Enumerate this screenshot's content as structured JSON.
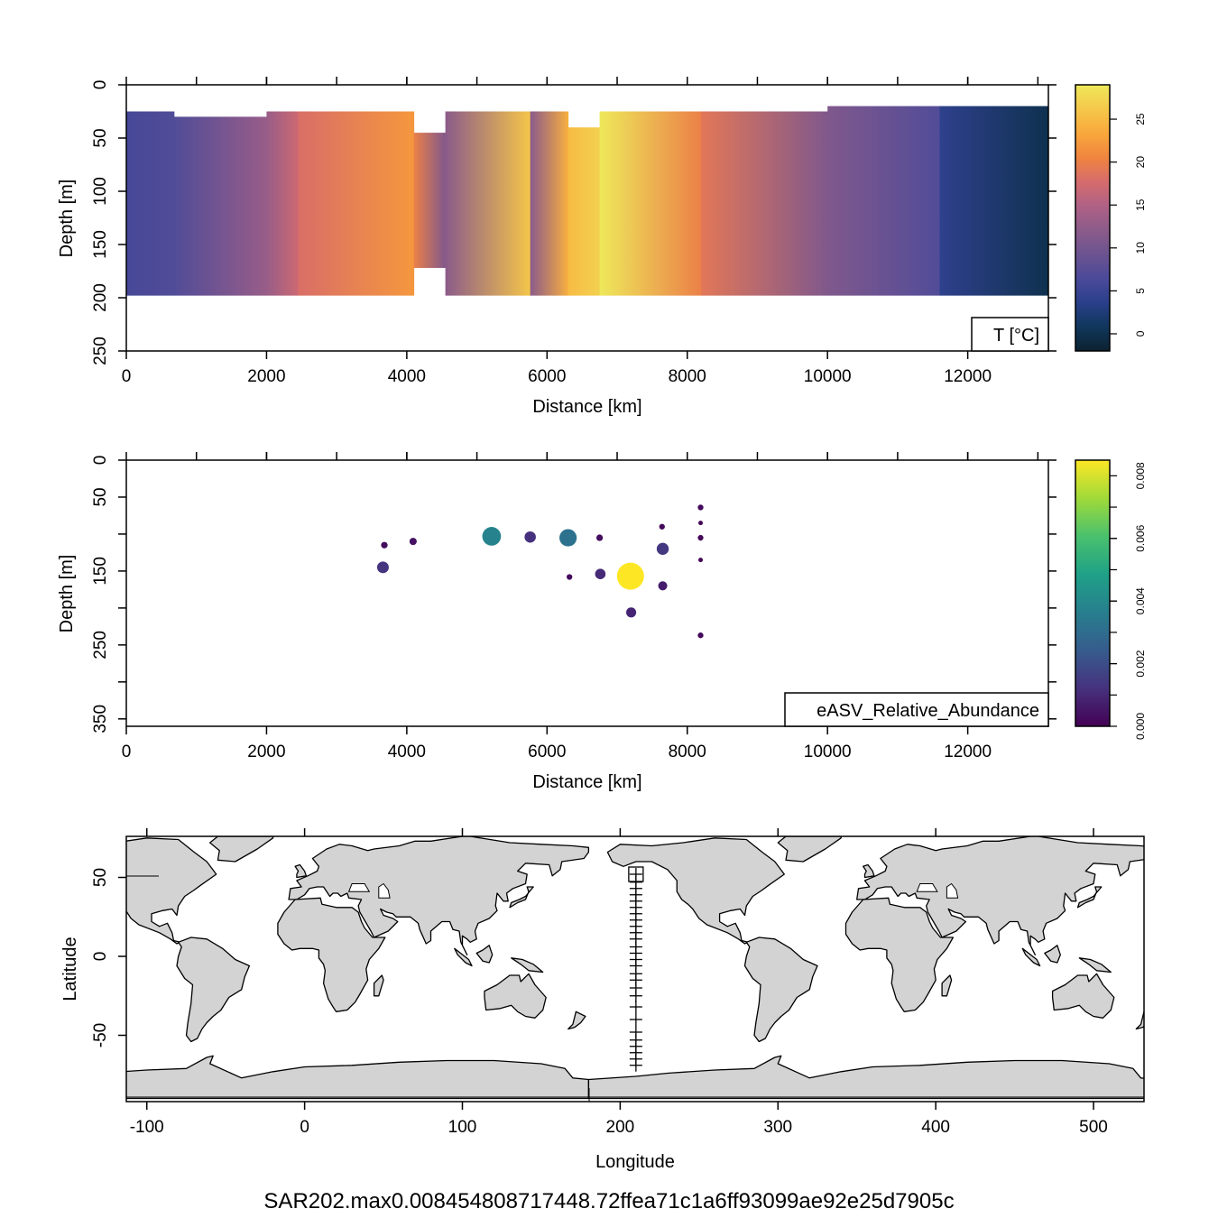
{
  "chart_data": [
    {
      "type": "heatmap",
      "xlabel": "Distance [km]",
      "ylabel": "Depth [m]",
      "xlim": [
        0,
        13150
      ],
      "ylim": [
        250,
        0
      ],
      "x_ticks": [
        "0",
        "2000",
        "4000",
        "6000",
        "8000",
        "10000",
        "12000"
      ],
      "y_ticks": [
        "0",
        "50",
        "100",
        "150",
        "200",
        "250"
      ],
      "legend_label": "T [°C]",
      "colorbar": {
        "range": [
          -2,
          29
        ],
        "ticks": [
          "0",
          "5",
          "10",
          "15",
          "20",
          "25"
        ],
        "palette": [
          "#0c2230",
          "#10375c",
          "#2a3f8a",
          "#4b4a9a",
          "#6c5390",
          "#8c5b8a",
          "#b06185",
          "#d66c6c",
          "#f0853f",
          "#f9a83c",
          "#f5c84a",
          "#eee85a"
        ]
      },
      "panels": [
        {
          "x0": 0,
          "x1": 680,
          "top": 25,
          "bottom": 198,
          "temps": [
            6,
            7
          ]
        },
        {
          "x0": 680,
          "x1": 2000,
          "top": 30,
          "bottom": 198,
          "temps": [
            7,
            13
          ]
        },
        {
          "x0": 2000,
          "x1": 2450,
          "top": 25,
          "bottom": 198,
          "temps": [
            13,
            17
          ]
        },
        {
          "x0": 2450,
          "x1": 4100,
          "top": 25,
          "bottom": 198,
          "temps": [
            18,
            22
          ]
        },
        {
          "x0": 4100,
          "x1": 4550,
          "top": 45,
          "bottom": 172,
          "temps": [
            20,
            11
          ]
        },
        {
          "x0": 4550,
          "x1": 5760,
          "top": 25,
          "bottom": 198,
          "temps": [
            12,
            26
          ]
        },
        {
          "x0": 5760,
          "x1": 6300,
          "top": 25,
          "bottom": 198,
          "temps": [
            12,
            24
          ]
        },
        {
          "x0": 6300,
          "x1": 6750,
          "top": 40,
          "bottom": 198,
          "temps": [
            25,
            27
          ]
        },
        {
          "x0": 6750,
          "x1": 8200,
          "top": 25,
          "bottom": 198,
          "temps": [
            29,
            20
          ]
        },
        {
          "x0": 8200,
          "x1": 10000,
          "top": 25,
          "bottom": 198,
          "temps": [
            19,
            11
          ]
        },
        {
          "x0": 10000,
          "x1": 11600,
          "top": 20,
          "bottom": 198,
          "temps": [
            11,
            7
          ]
        },
        {
          "x0": 11600,
          "x1": 13150,
          "top": 20,
          "bottom": 198,
          "temps": [
            4,
            0
          ]
        }
      ]
    },
    {
      "type": "scatter",
      "xlabel": "Distance [km]",
      "ylabel": "Depth [m]",
      "xlim": [
        0,
        13150
      ],
      "ylim": [
        360,
        0
      ],
      "x_ticks": [
        "0",
        "2000",
        "4000",
        "6000",
        "8000",
        "10000",
        "12000"
      ],
      "y_ticks": [
        "0",
        "50",
        "150",
        "250",
        "350"
      ],
      "legend_label": "eASV_Relative_Abundance",
      "colorbar": {
        "range": [
          0,
          0.0085
        ],
        "ticks": [
          "0.000",
          "0.002",
          "0.004",
          "0.006",
          "0.008"
        ],
        "palette": [
          "#440154",
          "#46327e",
          "#365c8d",
          "#277f8e",
          "#1fa187",
          "#4ac16d",
          "#a0da39",
          "#fde725"
        ]
      },
      "points": [
        {
          "x": 3660,
          "y": 145,
          "v": 0.0013
        },
        {
          "x": 3680,
          "y": 115,
          "v": 0.0003
        },
        {
          "x": 4090,
          "y": 110,
          "v": 0.0004
        },
        {
          "x": 5210,
          "y": 103,
          "v": 0.0038
        },
        {
          "x": 5760,
          "y": 104,
          "v": 0.0012
        },
        {
          "x": 6300,
          "y": 105,
          "v": 0.0032
        },
        {
          "x": 6320,
          "y": 158,
          "v": 0.0002
        },
        {
          "x": 6750,
          "y": 105,
          "v": 0.0003
        },
        {
          "x": 6760,
          "y": 154,
          "v": 0.001
        },
        {
          "x": 7190,
          "y": 157,
          "v": 0.0085
        },
        {
          "x": 7200,
          "y": 206,
          "v": 0.0009
        },
        {
          "x": 7640,
          "y": 90,
          "v": 0.0002
        },
        {
          "x": 7650,
          "y": 120,
          "v": 0.0014
        },
        {
          "x": 7650,
          "y": 170,
          "v": 0.0007
        },
        {
          "x": 8190,
          "y": 64,
          "v": 0.0002
        },
        {
          "x": 8190,
          "y": 85,
          "v": 0.0001
        },
        {
          "x": 8190,
          "y": 105,
          "v": 0.0002
        },
        {
          "x": 8190,
          "y": 135,
          "v": 0.0001
        },
        {
          "x": 8190,
          "y": 237,
          "v": 0.0002
        }
      ]
    },
    {
      "type": "map",
      "xlabel": "Longitude",
      "ylabel": "Latitude",
      "xlim": [
        -113,
        532
      ],
      "ylim": [
        -92,
        76
      ],
      "x_ticks": [
        "-100",
        "0",
        "100",
        "200",
        "300",
        "400",
        "500"
      ],
      "y_ticks": [
        "-50",
        "0",
        "50"
      ],
      "land_color": "#d3d3d3",
      "stations": [
        {
          "lon": 210,
          "lat": 52
        },
        {
          "lon": 210,
          "lat": 47
        },
        {
          "lon": 210,
          "lat": 43
        },
        {
          "lon": 210,
          "lat": 39
        },
        {
          "lon": 210,
          "lat": 35
        },
        {
          "lon": 210,
          "lat": 31
        },
        {
          "lon": 210,
          "lat": 27
        },
        {
          "lon": 210,
          "lat": 23
        },
        {
          "lon": 210,
          "lat": 19
        },
        {
          "lon": 210,
          "lat": 15
        },
        {
          "lon": 210,
          "lat": 11
        },
        {
          "lon": 210,
          "lat": 6
        },
        {
          "lon": 210,
          "lat": 2
        },
        {
          "lon": 210,
          "lat": -2
        },
        {
          "lon": 210,
          "lat": -6
        },
        {
          "lon": 210,
          "lat": -11
        },
        {
          "lon": 210,
          "lat": -15
        },
        {
          "lon": 210,
          "lat": -20
        },
        {
          "lon": 210,
          "lat": -25
        },
        {
          "lon": 210,
          "lat": -32
        },
        {
          "lon": 210,
          "lat": -40
        },
        {
          "lon": 210,
          "lat": -48
        },
        {
          "lon": 210,
          "lat": -53
        },
        {
          "lon": 210,
          "lat": -57
        },
        {
          "lon": 210,
          "lat": -61
        },
        {
          "lon": 210,
          "lat": -65
        },
        {
          "lon": 210,
          "lat": -69
        }
      ],
      "highlight_station": {
        "lon": 210,
        "lat": 52
      }
    }
  ],
  "footer": "SAR202.max0.008454808717448.72ffea71c1a6ff93099ae92e25d7905c"
}
